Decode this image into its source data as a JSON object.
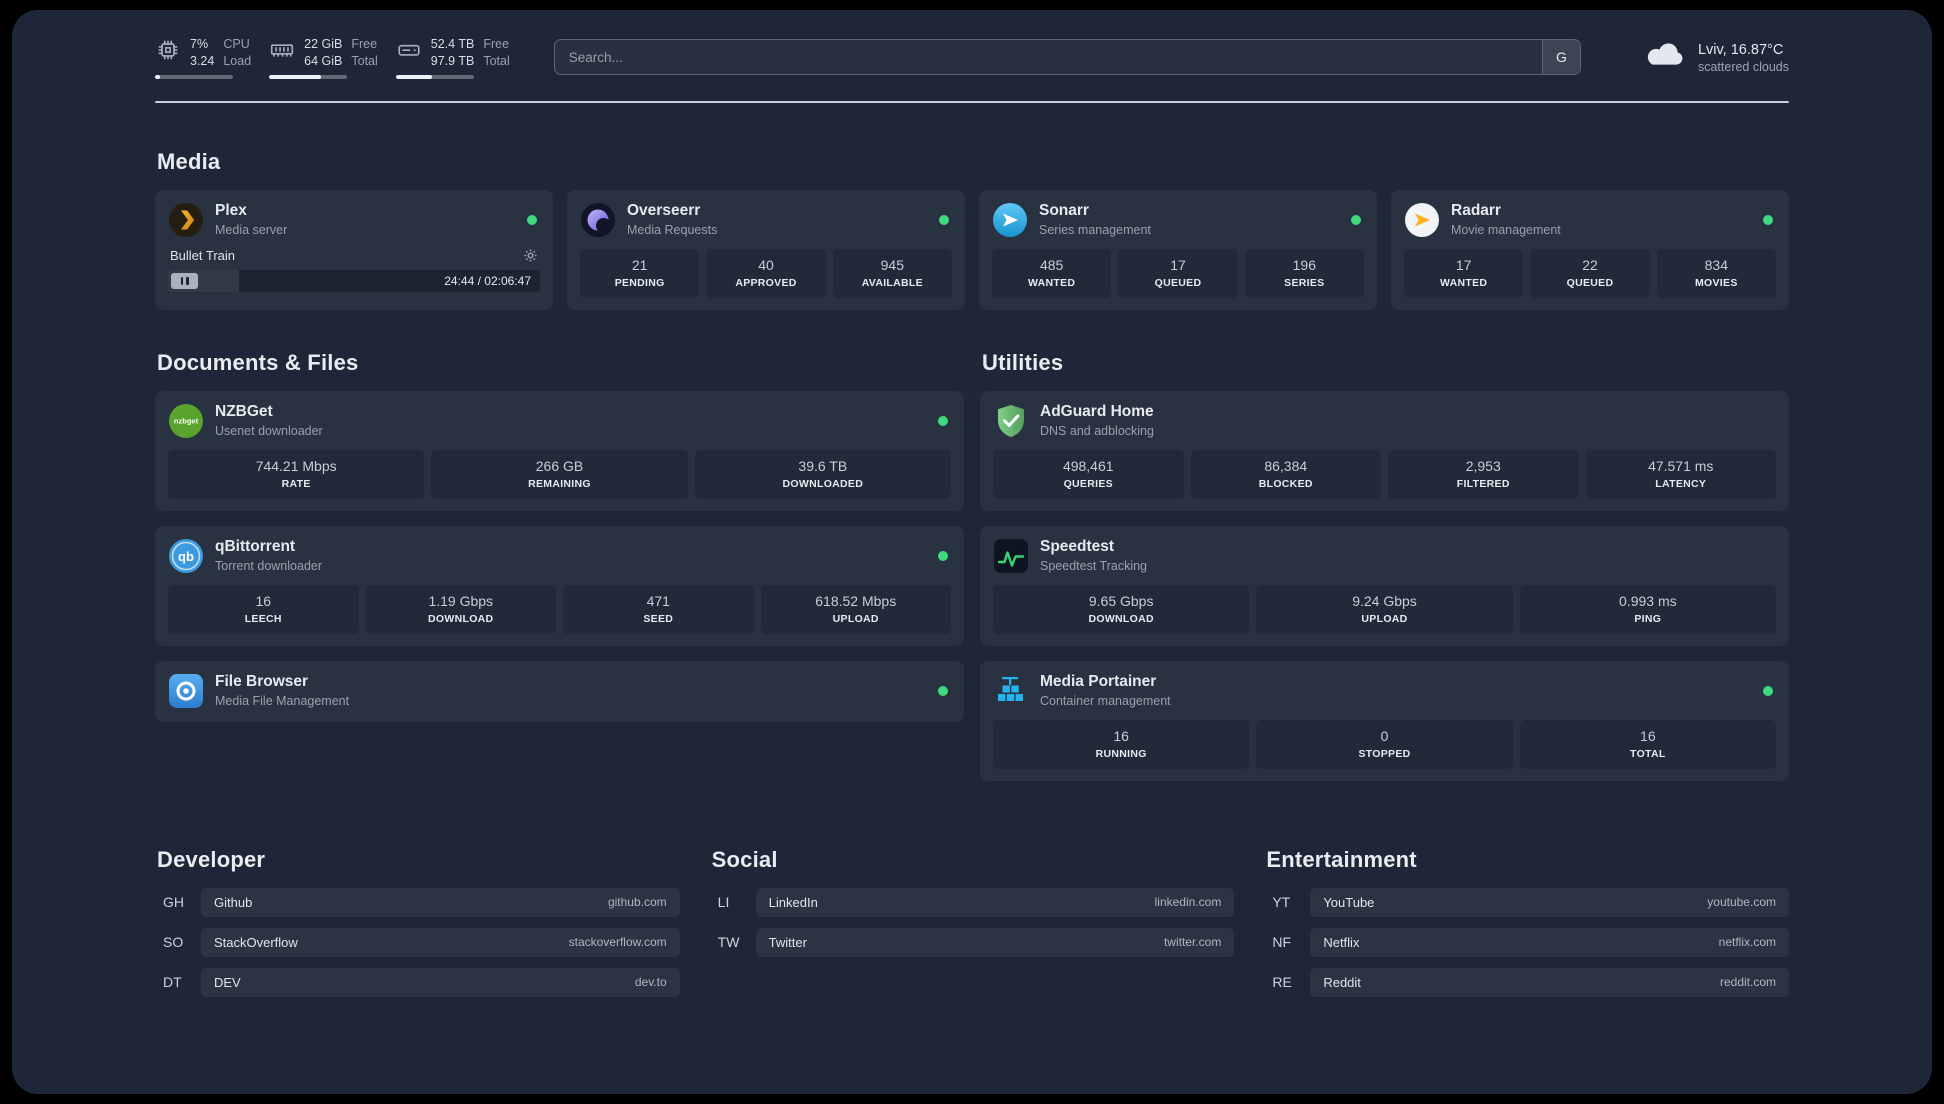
{
  "colors": {
    "status_online": "#3fd97f",
    "background": "#1e2737",
    "card": "#293241",
    "stat_block": "#212a38"
  },
  "icons": {
    "cpu": "cpu-chip-icon",
    "memory": "memory-stick-icon",
    "disk": "hard-drive-icon",
    "weather": "cloud-icon",
    "plex_settings": "gear-icon",
    "player": "pause-icon"
  },
  "topbar": {
    "cpu": {
      "values": [
        "7%",
        "3.24"
      ],
      "labels": [
        "CPU",
        "Load"
      ],
      "percent": 7
    },
    "memory": {
      "values": [
        "22 GiB",
        "64 GiB"
      ],
      "labels": [
        "Free",
        "Total"
      ],
      "percent": 66
    },
    "disk": {
      "values": [
        "52.4 TB",
        "97.9 TB"
      ],
      "labels": [
        "Free",
        "Total"
      ],
      "percent": 46
    },
    "search": {
      "placeholder": "Search...",
      "provider_button": "G"
    },
    "weather": {
      "location": "Lviv, 16.87°C",
      "condition": "scattered clouds"
    }
  },
  "media": {
    "title": "Media",
    "plex": {
      "name": "Plex",
      "subtitle": "Media server",
      "status": "online",
      "now_playing": {
        "title": "Bullet Train",
        "time": "24:44 / 02:06:47",
        "progress": 19
      }
    },
    "overseerr": {
      "name": "Overseerr",
      "subtitle": "Media Requests",
      "status": "online",
      "stats": [
        {
          "value": "21",
          "label": "PENDING"
        },
        {
          "value": "40",
          "label": "APPROVED"
        },
        {
          "value": "945",
          "label": "AVAILABLE"
        }
      ]
    },
    "sonarr": {
      "name": "Sonarr",
      "subtitle": "Series management",
      "status": "online",
      "stats": [
        {
          "value": "485",
          "label": "WANTED"
        },
        {
          "value": "17",
          "label": "QUEUED"
        },
        {
          "value": "196",
          "label": "SERIES"
        }
      ]
    },
    "radarr": {
      "name": "Radarr",
      "subtitle": "Movie management",
      "status": "online",
      "stats": [
        {
          "value": "17",
          "label": "WANTED"
        },
        {
          "value": "22",
          "label": "QUEUED"
        },
        {
          "value": "834",
          "label": "MOVIES"
        }
      ]
    }
  },
  "documents": {
    "title": "Documents & Files",
    "nzbget": {
      "name": "NZBGet",
      "subtitle": "Usenet downloader",
      "status": "online",
      "stats": [
        {
          "value": "744.21 Mbps",
          "label": "RATE"
        },
        {
          "value": "266 GB",
          "label": "REMAINING"
        },
        {
          "value": "39.6 TB",
          "label": "DOWNLOADED"
        }
      ]
    },
    "qbittorrent": {
      "name": "qBittorrent",
      "subtitle": "Torrent downloader",
      "status": "online",
      "stats": [
        {
          "value": "16",
          "label": "LEECH"
        },
        {
          "value": "1.19 Gbps",
          "label": "DOWNLOAD"
        },
        {
          "value": "471",
          "label": "SEED"
        },
        {
          "value": "618.52 Mbps",
          "label": "UPLOAD"
        }
      ]
    },
    "filebrowser": {
      "name": "File Browser",
      "subtitle": "Media File Management",
      "status": "online"
    }
  },
  "utilities": {
    "title": "Utilities",
    "adguard": {
      "name": "AdGuard Home",
      "subtitle": "DNS and adblocking",
      "stats": [
        {
          "value": "498,461",
          "label": "QUERIES"
        },
        {
          "value": "86,384",
          "label": "BLOCKED"
        },
        {
          "value": "2,953",
          "label": "FILTERED"
        },
        {
          "value": "47.571 ms",
          "label": "LATENCY"
        }
      ]
    },
    "speedtest": {
      "name": "Speedtest",
      "subtitle": "Speedtest Tracking",
      "stats": [
        {
          "value": "9.65 Gbps",
          "label": "DOWNLOAD"
        },
        {
          "value": "9.24 Gbps",
          "label": "UPLOAD"
        },
        {
          "value": "0.993 ms",
          "label": "PING"
        }
      ]
    },
    "portainer": {
      "name": "Media Portainer",
      "subtitle": "Container management",
      "status": "online",
      "stats": [
        {
          "value": "16",
          "label": "RUNNING"
        },
        {
          "value": "0",
          "label": "STOPPED"
        },
        {
          "value": "16",
          "label": "TOTAL"
        }
      ]
    }
  },
  "bookmarks": {
    "developer": {
      "title": "Developer",
      "items": [
        {
          "abbr": "GH",
          "name": "Github",
          "domain": "github.com"
        },
        {
          "abbr": "SO",
          "name": "StackOverflow",
          "domain": "stackoverflow.com"
        },
        {
          "abbr": "DT",
          "name": "DEV",
          "domain": "dev.to"
        }
      ]
    },
    "social": {
      "title": "Social",
      "items": [
        {
          "abbr": "LI",
          "name": "LinkedIn",
          "domain": "linkedin.com"
        },
        {
          "abbr": "TW",
          "name": "Twitter",
          "domain": "twitter.com"
        }
      ]
    },
    "entertainment": {
      "title": "Entertainment",
      "items": [
        {
          "abbr": "YT",
          "name": "YouTube",
          "domain": "youtube.com"
        },
        {
          "abbr": "NF",
          "name": "Netflix",
          "domain": "netflix.com"
        },
        {
          "abbr": "RE",
          "name": "Reddit",
          "domain": "reddit.com"
        }
      ]
    }
  }
}
